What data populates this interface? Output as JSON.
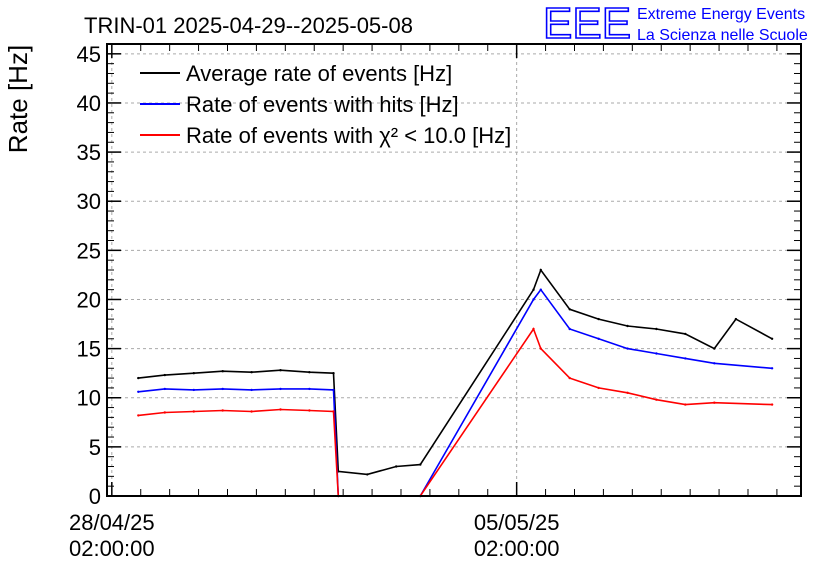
{
  "title": "TRIN-01 2025-04-29--2025-05-08",
  "logo": {
    "mark": "EEE",
    "line1": "Extreme Energy Events",
    "line2": "La Scienza nelle Scuole",
    "color": "#0000ff"
  },
  "chart_data": {
    "type": "line",
    "ylabel": "Rate [Hz]",
    "xlabel": "",
    "ylim": [
      0,
      46
    ],
    "yticks": [
      0,
      5,
      10,
      15,
      20,
      25,
      30,
      35,
      40,
      45
    ],
    "xlim": [
      "2025-04-28 00:00:00",
      "2025-05-10 00:00:00"
    ],
    "xticks": [
      {
        "x": "2025-04-28 02:00:00",
        "line1": "28/04/25",
        "line2": "02:00:00"
      },
      {
        "x": "2025-05-05 02:00:00",
        "line1": "05/05/25",
        "line2": "02:00:00"
      }
    ],
    "grid": true,
    "legend_position": "top-left",
    "series": [
      {
        "name": "Average rate of events [Hz]",
        "color": "#000000",
        "points": [
          [
            "2025-04-28 13:00",
            12.0
          ],
          [
            "2025-04-29 00:00",
            12.3
          ],
          [
            "2025-04-29 12:00",
            12.5
          ],
          [
            "2025-04-30 00:00",
            12.7
          ],
          [
            "2025-04-30 12:00",
            12.6
          ],
          [
            "2025-05-01 00:00",
            12.8
          ],
          [
            "2025-05-01 12:00",
            12.6
          ],
          [
            "2025-05-01 22:00",
            12.5
          ],
          [
            "2025-05-02 00:00",
            2.5
          ],
          [
            "2025-05-02 12:00",
            2.2
          ],
          [
            "2025-05-03 00:00",
            3.0
          ],
          [
            "2025-05-03 10:00",
            3.2
          ],
          [
            "2025-05-05 09:00",
            21.0
          ],
          [
            "2025-05-05 12:00",
            23.0
          ],
          [
            "2025-05-06 00:00",
            19.0
          ],
          [
            "2025-05-06 12:00",
            18.0
          ],
          [
            "2025-05-07 00:00",
            17.3
          ],
          [
            "2025-05-07 12:00",
            17.0
          ],
          [
            "2025-05-08 00:00",
            16.5
          ],
          [
            "2025-05-08 12:00",
            15.0
          ],
          [
            "2025-05-08 21:00",
            18.0
          ],
          [
            "2025-05-09 12:00",
            16.0
          ]
        ]
      },
      {
        "name": "Rate of events with hits [Hz]",
        "color": "#0000ff",
        "points": [
          [
            "2025-04-28 13:00",
            10.6
          ],
          [
            "2025-04-29 00:00",
            10.9
          ],
          [
            "2025-04-29 12:00",
            10.8
          ],
          [
            "2025-04-30 00:00",
            10.9
          ],
          [
            "2025-04-30 12:00",
            10.8
          ],
          [
            "2025-05-01 00:00",
            10.9
          ],
          [
            "2025-05-01 12:00",
            10.9
          ],
          [
            "2025-05-01 22:00",
            10.8
          ],
          [
            "2025-05-02 00:00",
            0
          ],
          [
            "2025-05-03 10:00",
            0
          ],
          [
            "2025-05-05 09:00",
            20.0
          ],
          [
            "2025-05-05 12:00",
            21.0
          ],
          [
            "2025-05-06 00:00",
            17.0
          ],
          [
            "2025-05-06 12:00",
            16.0
          ],
          [
            "2025-05-07 00:00",
            15.0
          ],
          [
            "2025-05-07 12:00",
            14.5
          ],
          [
            "2025-05-08 00:00",
            14.0
          ],
          [
            "2025-05-08 12:00",
            13.5
          ],
          [
            "2025-05-09 12:00",
            13.0
          ]
        ]
      },
      {
        "name": "Rate of events with χ² < 10.0 [Hz]",
        "color": "#ff0000",
        "points": [
          [
            "2025-04-28 13:00",
            8.2
          ],
          [
            "2025-04-29 00:00",
            8.5
          ],
          [
            "2025-04-29 12:00",
            8.6
          ],
          [
            "2025-04-30 00:00",
            8.7
          ],
          [
            "2025-04-30 12:00",
            8.6
          ],
          [
            "2025-05-01 00:00",
            8.8
          ],
          [
            "2025-05-01 12:00",
            8.7
          ],
          [
            "2025-05-01 22:00",
            8.6
          ],
          [
            "2025-05-02 00:00",
            0
          ],
          [
            "2025-05-03 10:00",
            0
          ],
          [
            "2025-05-05 09:00",
            17.0
          ],
          [
            "2025-05-05 12:00",
            15.0
          ],
          [
            "2025-05-06 00:00",
            12.0
          ],
          [
            "2025-05-06 12:00",
            11.0
          ],
          [
            "2025-05-07 00:00",
            10.5
          ],
          [
            "2025-05-07 12:00",
            9.8
          ],
          [
            "2025-05-08 00:00",
            9.3
          ],
          [
            "2025-05-08 12:00",
            9.5
          ],
          [
            "2025-05-09 12:00",
            9.3
          ]
        ]
      }
    ]
  }
}
